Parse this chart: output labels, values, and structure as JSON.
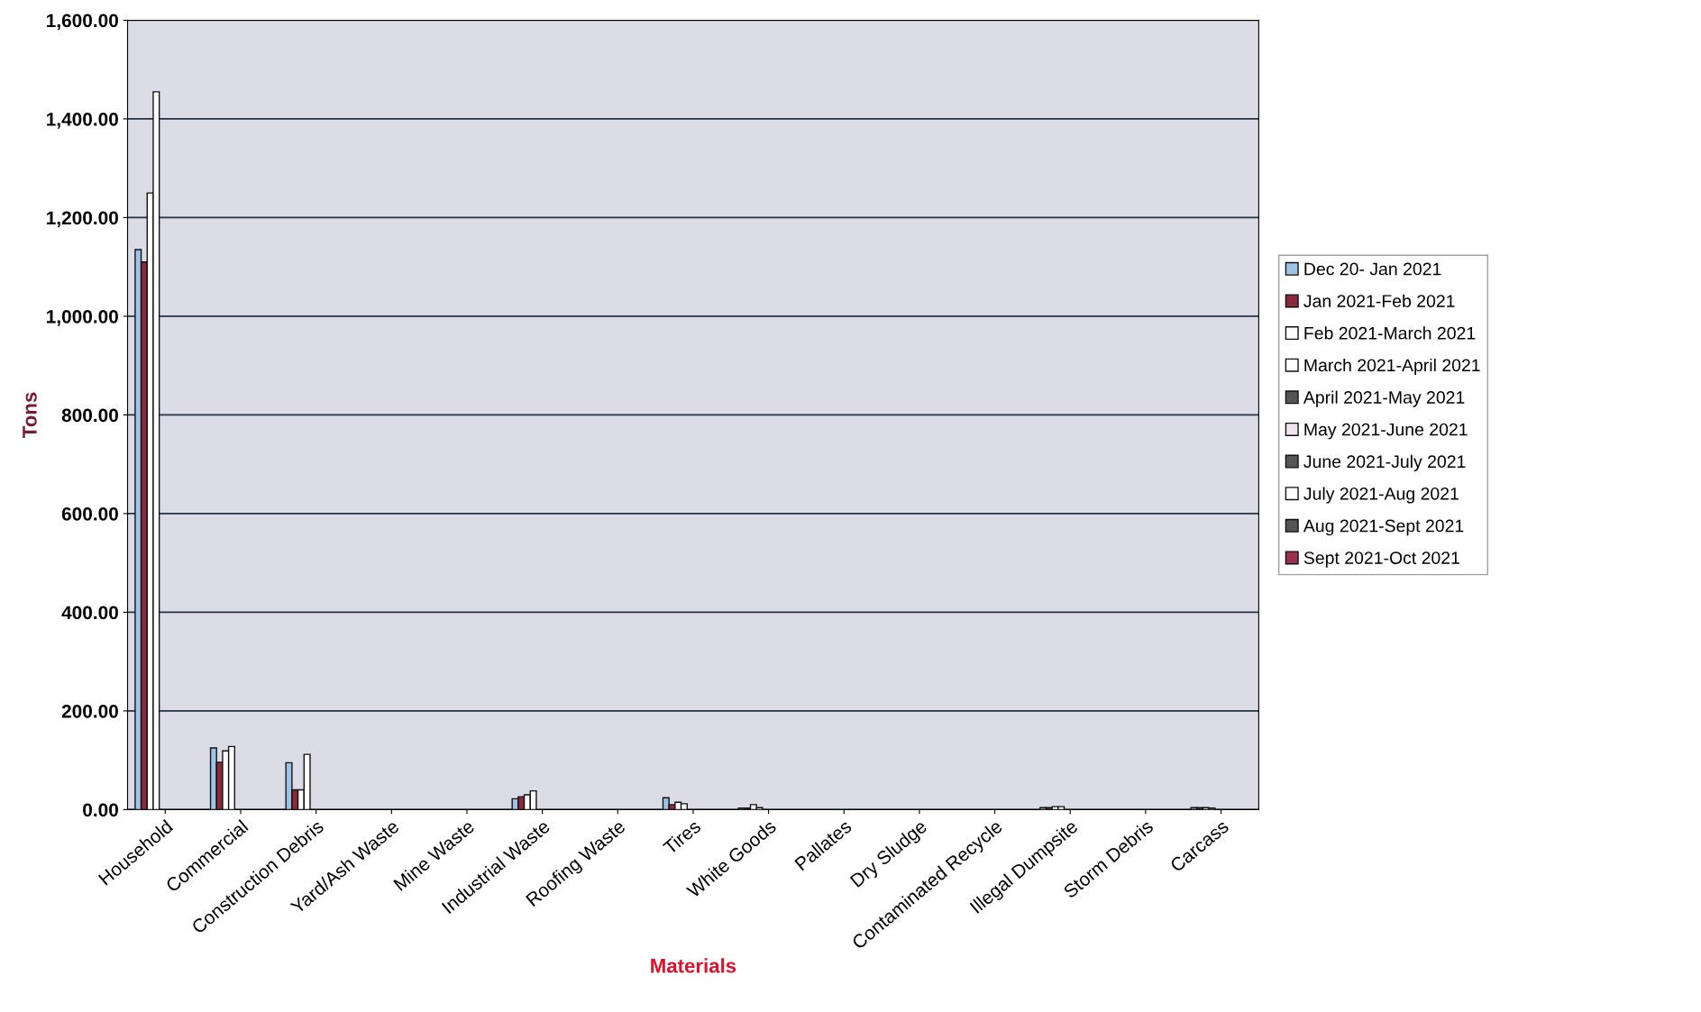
{
  "chart_data": {
    "type": "bar",
    "xlabel": "Materials",
    "ylabel": "Tons",
    "categories": [
      "Household",
      "Commercial",
      "Construction Debris",
      "Yard/Ash Waste",
      "Mine Waste",
      "Industrial Waste",
      "Roofing Waste",
      "Tires",
      "White Goods",
      "Pallates",
      "Dry Sludge",
      "Contaminated Recycle",
      "Illegal Dumpsite",
      "Storm Debris",
      "Carcass"
    ],
    "series": [
      {
        "name": "Dec 20- Jan 2021",
        "color": "#9dc3e6",
        "values": [
          1135,
          125,
          95,
          null,
          null,
          22,
          null,
          24,
          3,
          null,
          null,
          null,
          4,
          null,
          4
        ]
      },
      {
        "name": "Jan 2021-Feb 2021",
        "color": "#8b2a3c",
        "values": [
          1110,
          96,
          40,
          null,
          null,
          26,
          null,
          10,
          3,
          null,
          null,
          null,
          4,
          null,
          4
        ]
      },
      {
        "name": "Feb 2021-March 2021",
        "color": "#ffffff",
        "values": [
          1250,
          119,
          40,
          null,
          null,
          30,
          null,
          15,
          10,
          null,
          null,
          null,
          6,
          null,
          4
        ]
      },
      {
        "name": "March 2021-April 2021",
        "color": "#ffffff",
        "values": [
          1455,
          128,
          112,
          null,
          null,
          38,
          null,
          12,
          4,
          null,
          null,
          null,
          6,
          null,
          3
        ]
      },
      {
        "name": "April 2021-May 2021",
        "color": "#555555",
        "values": [
          null,
          null,
          null,
          null,
          null,
          null,
          null,
          null,
          null,
          null,
          null,
          null,
          null,
          null,
          null
        ]
      },
      {
        "name": "May 2021-June 2021",
        "color": "#f2e4ee",
        "values": [
          null,
          null,
          null,
          null,
          null,
          null,
          null,
          null,
          null,
          null,
          null,
          null,
          null,
          null,
          null
        ]
      },
      {
        "name": "June 2021-July 2021",
        "color": "#555555",
        "values": [
          null,
          null,
          null,
          null,
          null,
          null,
          null,
          null,
          null,
          null,
          null,
          null,
          null,
          null,
          null
        ]
      },
      {
        "name": "July 2021-Aug 2021",
        "color": "#ffffff",
        "values": [
          null,
          null,
          null,
          null,
          null,
          null,
          null,
          null,
          null,
          null,
          null,
          null,
          null,
          null,
          null
        ]
      },
      {
        "name": "Aug 2021-Sept 2021",
        "color": "#555555",
        "values": [
          null,
          null,
          null,
          null,
          null,
          null,
          null,
          null,
          null,
          null,
          null,
          null,
          null,
          null,
          null
        ]
      },
      {
        "name": "Sept 2021-Oct 2021",
        "color": "#9b3050",
        "values": [
          null,
          null,
          null,
          null,
          null,
          null,
          null,
          null,
          null,
          null,
          null,
          null,
          null,
          null,
          null
        ]
      }
    ],
    "ylim": [
      0,
      1600
    ],
    "yticks": [
      {
        "value": 0,
        "label": "0.00"
      },
      {
        "value": 200,
        "label": "200.00"
      },
      {
        "value": 400,
        "label": "400.00"
      },
      {
        "value": 600,
        "label": "600.00"
      },
      {
        "value": 800,
        "label": "800.00"
      },
      {
        "value": 1000,
        "label": "1,000.00"
      },
      {
        "value": 1200,
        "label": "1,200.00"
      },
      {
        "value": 1400,
        "label": "1,400.00"
      },
      {
        "value": 1600,
        "label": "1,600.00"
      }
    ],
    "grid": "y",
    "legend": "right"
  }
}
